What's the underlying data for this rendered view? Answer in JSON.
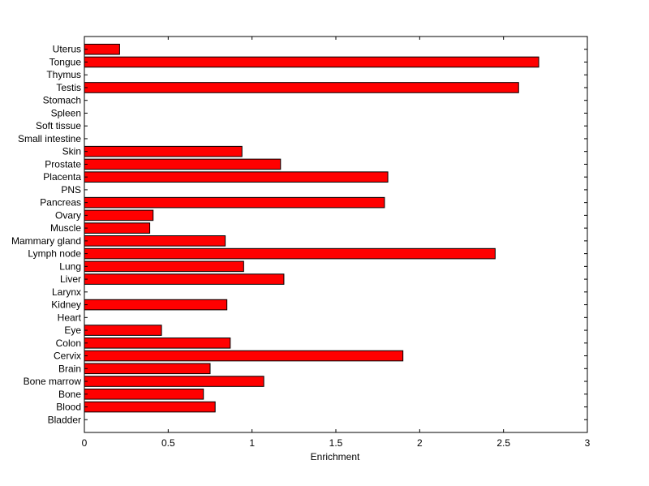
{
  "chart_data": {
    "type": "bar",
    "orientation": "horizontal",
    "categories": [
      "Uterus",
      "Tongue",
      "Thymus",
      "Testis",
      "Stomach",
      "Spleen",
      "Soft tissue",
      "Small intestine",
      "Skin",
      "Prostate",
      "Placenta",
      "PNS",
      "Pancreas",
      "Ovary",
      "Muscle",
      "Mammary gland",
      "Lymph node",
      "Lung",
      "Liver",
      "Larynx",
      "Kidney",
      "Heart",
      "Eye",
      "Colon",
      "Cervix",
      "Brain",
      "Bone marrow",
      "Bone",
      "Blood",
      "Bladder"
    ],
    "values": [
      0.21,
      2.71,
      0,
      2.59,
      0,
      0,
      0,
      0,
      0.94,
      1.17,
      1.81,
      0,
      1.79,
      0.41,
      0.39,
      0.84,
      2.45,
      0.95,
      1.19,
      0,
      0.85,
      0,
      0.46,
      0.87,
      1.9,
      0.75,
      1.07,
      0.71,
      0.78,
      0
    ],
    "title": "",
    "xlabel": "Enrichment",
    "ylabel": "",
    "xlim": [
      0,
      3
    ],
    "xticks": [
      "0",
      "0.5",
      "1",
      "1.5",
      "2",
      "2.5",
      "3"
    ],
    "bar_color": "#ff0000",
    "grid": false,
    "legend": "none"
  }
}
